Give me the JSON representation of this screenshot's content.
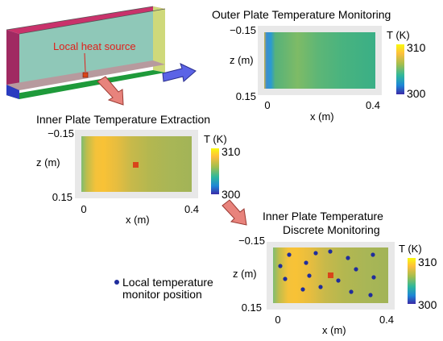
{
  "box": {
    "heat_source_label": "Local heat source",
    "colors": {
      "heat_label": "#e0201b",
      "heat_arrow": "#e0201b"
    }
  },
  "outer": {
    "title": "Outer Plate Temperature Monitoring",
    "x_label": "x (m)",
    "z_label": "z (m)",
    "x_ticks": [
      "0",
      "0.4"
    ],
    "z_ticks": [
      "−0.15",
      "0.15"
    ],
    "colorbar": {
      "label": "T (K)",
      "max": "310",
      "min": "300"
    }
  },
  "inner": {
    "title": "Inner Plate Temperature Extraction",
    "x_label": "x (m)",
    "z_label": "z (m)",
    "x_ticks": [
      "0",
      "0.4"
    ],
    "z_ticks": [
      "−0.15",
      "0.15"
    ],
    "colorbar": {
      "label": "T (K)",
      "max": "310",
      "min": "300"
    }
  },
  "discrete": {
    "title_line1": "Inner Plate Temperature",
    "title_line2": "Discrete Monitoring",
    "x_label": "x (m)",
    "z_label": "z (m)",
    "x_ticks": [
      "0",
      "0.4"
    ],
    "z_ticks": [
      "−0.15",
      "0.15"
    ],
    "colorbar": {
      "label": "T (K)",
      "max": "310",
      "min": "300"
    }
  },
  "legend": {
    "line1": "Local temperature",
    "line2": "monitor position",
    "marker_color": "#1f2d9c"
  },
  "colors": {
    "arrow_blue": "#5b63e6",
    "arrow_red": "#e8837c",
    "heat_marker": "#d9441a"
  }
}
